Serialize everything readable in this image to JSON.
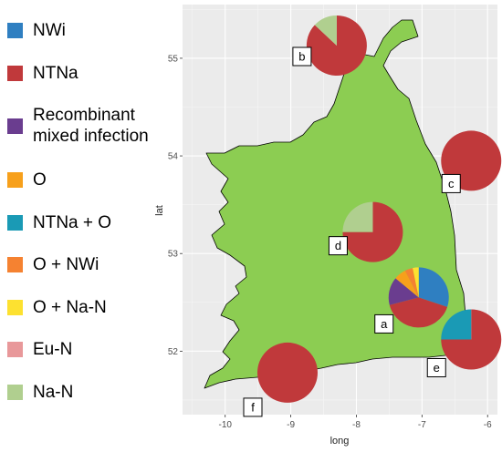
{
  "chart_data": {
    "type": "pie",
    "xlabel": "long",
    "ylabel": "lat",
    "xlim": [
      -10.65,
      -5.85
    ],
    "ylim": [
      51.35,
      55.55
    ],
    "x_ticks": [
      -10,
      -9,
      -8,
      -7,
      -6
    ],
    "y_ticks": [
      52,
      53,
      54,
      55
    ],
    "grid": true,
    "legend_position": "left",
    "categories": [
      "NWi",
      "NTNa",
      "Recombinant mixed infection",
      "O",
      "NTNa + O",
      "O + NWi",
      "O + Na-N",
      "Eu-N",
      "Na-N"
    ],
    "legend": [
      {
        "label": "NWi",
        "color": "#2f7fc1"
      },
      {
        "label": "NTNa",
        "color": "#c0393b"
      },
      {
        "label": "Recombinant mixed infection",
        "color": "#6a3d8f"
      },
      {
        "label": "O",
        "color": "#f7a01b"
      },
      {
        "label": "NTNa + O",
        "color": "#1a9ab5"
      },
      {
        "label": "O + NWi",
        "color": "#f58231"
      },
      {
        "label": "O + Na-N",
        "color": "#fde130"
      },
      {
        "label": "Eu-N",
        "color": "#e8989a"
      },
      {
        "label": "Na-N",
        "color": "#b0cf8f"
      }
    ],
    "pies": [
      {
        "label": "a",
        "long": -7.05,
        "lat": 52.55,
        "values": [
          0.28,
          0.38,
          0.14,
          0.06,
          0,
          0.04,
          0.03,
          0,
          0
        ]
      },
      {
        "label": "b",
        "long": -8.3,
        "lat": 55.13,
        "values": [
          0,
          0.87,
          0,
          0,
          0,
          0,
          0,
          0,
          0.13
        ]
      },
      {
        "label": "c",
        "long": -6.25,
        "lat": 53.95,
        "values": [
          0,
          1,
          0,
          0,
          0,
          0,
          0,
          0,
          0
        ]
      },
      {
        "label": "d",
        "long": -7.75,
        "lat": 53.22,
        "values": [
          0,
          0.75,
          0,
          0,
          0,
          0,
          0,
          0,
          0.25
        ]
      },
      {
        "label": "e",
        "long": -6.25,
        "lat": 52.12,
        "values": [
          0,
          0.75,
          0,
          0,
          0.25,
          0,
          0,
          0,
          0
        ]
      },
      {
        "label": "f",
        "long": -9.05,
        "lat": 51.78,
        "values": [
          0,
          1,
          0,
          0,
          0,
          0,
          0,
          0,
          0
        ]
      }
    ]
  }
}
